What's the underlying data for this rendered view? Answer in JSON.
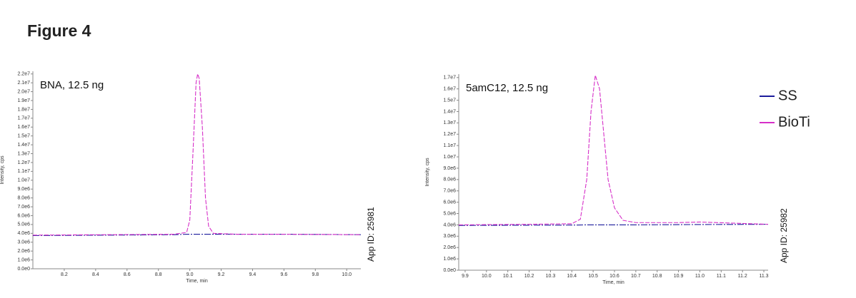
{
  "title": "Figure 4",
  "chart_data": [
    {
      "type": "line",
      "annotation": "BNA, 12.5 ng",
      "app_id": "App ID: 25981",
      "xlabel": "Time, min",
      "ylabel": "Intensity, cps",
      "x": [
        8.0,
        8.5,
        8.9,
        8.98,
        9.0,
        9.02,
        9.04,
        9.05,
        9.06,
        9.08,
        9.1,
        9.12,
        9.15,
        9.3,
        9.6,
        10.09
      ],
      "series": [
        {
          "color": "#1c1c9c",
          "values": [
            3750000,
            3800000,
            3850000,
            3900000,
            3900000,
            3900000,
            3900000,
            3900000,
            3900000,
            3900000,
            3900000,
            3900000,
            3900000,
            3900000,
            3900000,
            3850000
          ]
        },
        {
          "color": "#d62fc8",
          "values": [
            3800000,
            3850000,
            3900000,
            4100000,
            5500000,
            13000000,
            21000000,
            22000000,
            21500000,
            16000000,
            8000000,
            4800000,
            4000000,
            3900000,
            3900000,
            3850000
          ]
        }
      ],
      "xlim": [
        8.0,
        10.09
      ],
      "xticks": [
        8.2,
        8.4,
        8.6,
        8.8,
        {
          "value": 9.0,
          "label": "9.0"
        },
        9.2,
        9.4,
        9.6,
        9.8,
        {
          "value": 10.0,
          "label": "10.0"
        }
      ],
      "ylim": [
        0,
        22300000
      ],
      "yticks": [
        {
          "value": 0,
          "label": "0.0e0"
        },
        {
          "value": 1000000,
          "label": "1.0e6"
        },
        {
          "value": 2000000,
          "label": "2.0e6"
        },
        {
          "value": 3000000,
          "label": "3.0e6"
        },
        {
          "value": 4000000,
          "label": "4.0e6"
        },
        {
          "value": 5000000,
          "label": "5.0e6"
        },
        {
          "value": 6000000,
          "label": "6.0e6"
        },
        {
          "value": 7000000,
          "label": "7.0e6"
        },
        {
          "value": 8000000,
          "label": "8.0e6"
        },
        {
          "value": 9000000,
          "label": "9.0e6"
        },
        {
          "value": 10000000,
          "label": "1.0e7"
        },
        {
          "value": 11000000,
          "label": "1.1e7"
        },
        {
          "value": 12000000,
          "label": "1.2e7"
        },
        {
          "value": 13000000,
          "label": "1.3e7"
        },
        {
          "value": 14000000,
          "label": "1.4e7"
        },
        {
          "value": 15000000,
          "label": "1.5e7"
        },
        {
          "value": 16000000,
          "label": "1.6e7"
        },
        {
          "value": 17000000,
          "label": "1.7e7"
        },
        {
          "value": 18000000,
          "label": "1.8e7"
        },
        {
          "value": 19000000,
          "label": "1.9e7"
        },
        {
          "value": 20000000,
          "label": "2.0e7"
        },
        {
          "value": 21000000,
          "label": "2.1e7"
        },
        {
          "value": 22000000,
          "label": "2.2e7"
        }
      ]
    },
    {
      "type": "line",
      "annotation": "5amC12, 12.5 ng",
      "app_id": "App ID: 25982",
      "xlabel": "Time, min",
      "ylabel": "Intensity, cps",
      "x": [
        9.87,
        10.2,
        10.4,
        10.44,
        10.47,
        10.49,
        10.51,
        10.53,
        10.55,
        10.57,
        10.6,
        10.64,
        10.7,
        10.9,
        11.0,
        11.32
      ],
      "series": [
        {
          "name": "SS",
          "color": "#1c1c9c",
          "values": [
            3950000,
            3970000,
            3980000,
            3990000,
            4000000,
            4000000,
            4000000,
            4000000,
            4000000,
            4000000,
            4000000,
            4000000,
            4000000,
            4020000,
            4030000,
            4050000
          ]
        },
        {
          "name": "BioTi",
          "color": "#d62fc8",
          "values": [
            4000000,
            4050000,
            4100000,
            4500000,
            8000000,
            14000000,
            17200000,
            16000000,
            12000000,
            8000000,
            5500000,
            4400000,
            4200000,
            4200000,
            4250000,
            4050000
          ]
        }
      ],
      "xlim": [
        9.87,
        11.32
      ],
      "xticks": [
        9.9,
        {
          "value": 10.0,
          "label": "10.0"
        },
        10.1,
        10.2,
        10.3,
        10.4,
        10.5,
        10.6,
        10.7,
        10.8,
        10.9,
        {
          "value": 11.0,
          "label": "11.0"
        },
        11.1,
        11.2,
        11.3
      ],
      "ylim": [
        0,
        17300000
      ],
      "yticks": [
        {
          "value": 0,
          "label": "0.0e0"
        },
        {
          "value": 1000000,
          "label": "1.0e6"
        },
        {
          "value": 2000000,
          "label": "2.0e6"
        },
        {
          "value": 3000000,
          "label": "3.0e6"
        },
        {
          "value": 4000000,
          "label": "4.0e6"
        },
        {
          "value": 5000000,
          "label": "5.0e6"
        },
        {
          "value": 6000000,
          "label": "6.0e6"
        },
        {
          "value": 7000000,
          "label": "7.0e6"
        },
        {
          "value": 8000000,
          "label": "8.0e6"
        },
        {
          "value": 9000000,
          "label": "9.0e6"
        },
        {
          "value": 10000000,
          "label": "1.0e7"
        },
        {
          "value": 11000000,
          "label": "1.1e7"
        },
        {
          "value": 12000000,
          "label": "1.2e7"
        },
        {
          "value": 13000000,
          "label": "1.3e7"
        },
        {
          "value": 14000000,
          "label": "1.4e7"
        },
        {
          "value": 15000000,
          "label": "1.5e7"
        },
        {
          "value": 16000000,
          "label": "1.6e7"
        },
        {
          "value": 17000000,
          "label": "1.7e7"
        }
      ]
    }
  ]
}
